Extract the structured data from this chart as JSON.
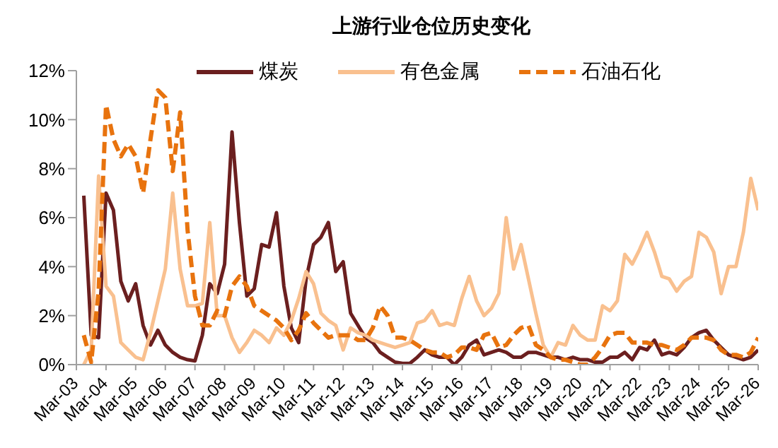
{
  "chart_data": {
    "type": "line",
    "title": "上游行业仓位历史变化",
    "categories": [
      "Mar-03",
      null,
      null,
      null,
      "Mar-04",
      null,
      null,
      null,
      "Mar-05",
      null,
      null,
      null,
      "Mar-06",
      null,
      null,
      null,
      "Mar-07",
      null,
      null,
      null,
      "Mar-08",
      null,
      null,
      null,
      "Mar-09",
      null,
      null,
      null,
      "Mar-10",
      null,
      null,
      null,
      "Mar-11",
      null,
      null,
      null,
      "Mar-12",
      null,
      null,
      null,
      "Mar-13",
      null,
      null,
      null,
      "Mar-14",
      null,
      null,
      null,
      "Mar-15",
      null,
      null,
      null,
      "Mar-16",
      null,
      null,
      null,
      "Mar-17",
      null,
      null,
      null,
      "Mar-18",
      null,
      null,
      null,
      "Mar-19",
      null,
      null,
      null,
      "Mar-20",
      null,
      null,
      null,
      "Mar-21",
      null,
      null,
      null,
      "Mar-22",
      null,
      null,
      null,
      "Mar-23",
      null,
      null,
      null,
      "Mar-24",
      null,
      null,
      null,
      "Mar-25",
      null,
      null,
      null,
      "Mar-26"
    ],
    "series": [
      {
        "name": "煤炭",
        "color": "#6b1f1f",
        "line_style": "solid",
        "values": [
          null,
          6.9,
          1.2,
          1.1,
          7.0,
          6.3,
          3.4,
          2.6,
          3.3,
          1.6,
          0.8,
          1.4,
          0.8,
          0.5,
          0.3,
          0.2,
          0.15,
          1.2,
          3.3,
          2.9,
          4.1,
          9.5,
          5.8,
          2.8,
          3.1,
          4.9,
          4.8,
          6.2,
          3.2,
          1.5,
          0.9,
          3.5,
          4.9,
          5.2,
          5.8,
          3.8,
          4.2,
          2.1,
          1.6,
          1.1,
          0.9,
          0.5,
          0.3,
          0.1,
          0.05,
          0.05,
          0.3,
          0.6,
          0.4,
          0.3,
          0.3,
          0.0,
          0.3,
          0.8,
          1.0,
          0.4,
          0.5,
          0.6,
          0.5,
          0.3,
          0.3,
          0.5,
          0.5,
          0.4,
          0.3,
          0.3,
          0.2,
          0.3,
          0.2,
          0.2,
          0.1,
          0.1,
          0.3,
          0.3,
          0.5,
          0.2,
          0.7,
          0.6,
          1.0,
          0.4,
          0.5,
          0.4,
          0.7,
          1.1,
          1.3,
          1.4,
          1.0,
          0.7,
          0.4,
          0.3,
          0.2,
          0.3,
          0.6
        ]
      },
      {
        "name": "有色金属",
        "color": "#f9c08f",
        "line_style": "solid",
        "values": [
          null,
          0.0,
          0.6,
          7.7,
          3.2,
          2.8,
          0.9,
          0.6,
          0.3,
          0.2,
          1.3,
          2.6,
          3.9,
          7.0,
          3.9,
          2.4,
          2.4,
          2.5,
          5.8,
          2.0,
          2.0,
          1.1,
          0.5,
          0.9,
          1.4,
          1.2,
          0.9,
          1.5,
          1.2,
          1.8,
          2.7,
          3.8,
          3.3,
          2.1,
          1.8,
          1.6,
          0.6,
          1.5,
          1.3,
          1.2,
          1.0,
          0.9,
          0.8,
          0.7,
          0.8,
          0.9,
          1.7,
          1.8,
          2.2,
          1.6,
          1.7,
          1.6,
          2.7,
          3.6,
          2.6,
          2.0,
          2.3,
          2.9,
          6.0,
          3.9,
          4.9,
          3.5,
          2.1,
          0.8,
          0.3,
          0.9,
          0.8,
          1.6,
          1.2,
          1.0,
          1.0,
          2.4,
          2.2,
          2.6,
          4.5,
          4.1,
          4.7,
          5.4,
          4.6,
          3.6,
          3.5,
          3.0,
          3.4,
          3.6,
          5.4,
          5.2,
          4.6,
          2.9,
          4.0,
          4.0,
          5.4,
          7.6,
          6.3
        ]
      },
      {
        "name": "石油石化",
        "color": "#e8730e",
        "line_style": "dashed",
        "values": [
          null,
          1.2,
          0.1,
          3.0,
          10.6,
          9.2,
          8.5,
          9.0,
          8.5,
          7.0,
          9.2,
          11.2,
          10.9,
          7.9,
          10.3,
          5.5,
          2.8,
          1.6,
          1.6,
          2.2,
          2.0,
          3.2,
          3.6,
          3.2,
          2.4,
          2.2,
          2.0,
          1.8,
          1.5,
          1.0,
          1.4,
          2.1,
          1.7,
          1.4,
          1.1,
          1.2,
          1.2,
          1.2,
          1.0,
          1.0,
          1.5,
          2.4,
          2.0,
          1.1,
          1.1,
          1.0,
          0.8,
          0.6,
          0.5,
          0.5,
          0.3,
          0.4,
          0.7,
          0.7,
          0.6,
          1.2,
          1.3,
          0.7,
          0.8,
          1.2,
          1.5,
          1.6,
          0.8,
          0.6,
          0.3,
          0.2,
          0.2,
          0.1,
          0.0,
          0.0,
          0.3,
          0.7,
          1.2,
          1.3,
          1.3,
          0.9,
          0.9,
          0.9,
          0.8,
          0.8,
          0.7,
          0.6,
          0.8,
          1.1,
          1.1,
          1.1,
          1.0,
          0.6,
          0.4,
          0.4,
          0.3,
          0.5,
          1.1
        ]
      }
    ],
    "ylim": [
      0,
      12
    ],
    "yticks": [
      {
        "value": 0,
        "label": "0%"
      },
      {
        "value": 2,
        "label": "2%"
      },
      {
        "value": 4,
        "label": "4%"
      },
      {
        "value": 6,
        "label": "6%"
      },
      {
        "value": 8,
        "label": "8%"
      },
      {
        "value": 10,
        "label": "10%"
      },
      {
        "value": 12,
        "label": "12%"
      }
    ],
    "grid": false,
    "legend": "top",
    "marker": "none"
  }
}
